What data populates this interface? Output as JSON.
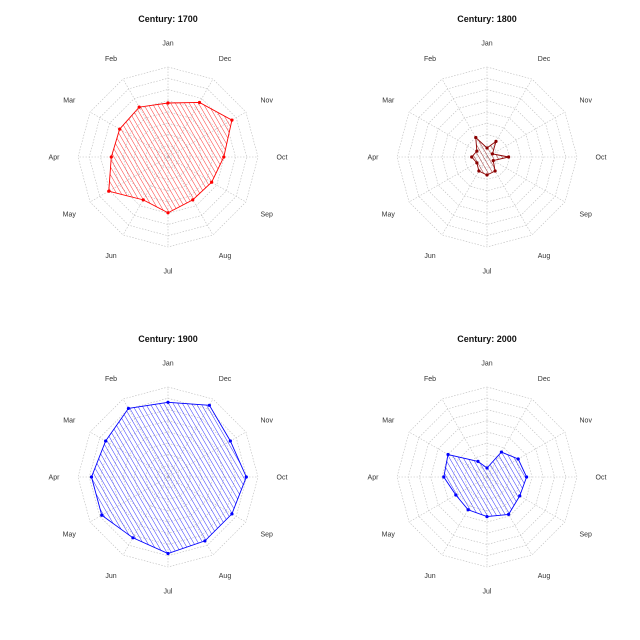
{
  "chart_data": [
    {
      "type": "radar",
      "title": "Century: 1700",
      "axes": [
        "Jan",
        "Dec",
        "Nov",
        "Oct",
        "Sep",
        "Aug",
        "Jul",
        "Jun",
        "May",
        "Apr",
        "Mar",
        "Feb"
      ],
      "rmax": 1.0,
      "rings": 8,
      "grid": true,
      "fill_pattern": "hatched",
      "series": [
        {
          "color": "#ff0000",
          "values": [
            0.6,
            0.7,
            0.82,
            0.62,
            0.56,
            0.55,
            0.62,
            0.55,
            0.76,
            0.63,
            0.62,
            0.64
          ]
        }
      ]
    },
    {
      "type": "radar",
      "title": "Century: 1800",
      "axes": [
        "Jan",
        "Dec",
        "Nov",
        "Oct",
        "Sep",
        "Aug",
        "Jul",
        "Jun",
        "May",
        "Apr",
        "Mar",
        "Feb"
      ],
      "rmax": 1.0,
      "rings": 8,
      "grid": true,
      "fill_pattern": "hatched",
      "series": [
        {
          "color": "#8b0000",
          "values": [
            0.1,
            0.2,
            0.07,
            0.24,
            0.08,
            0.18,
            0.2,
            0.18,
            0.13,
            0.17,
            0.13,
            0.25
          ]
        }
      ]
    },
    {
      "type": "radar",
      "title": "Century: 1900",
      "axes": [
        "Jan",
        "Dec",
        "Nov",
        "Oct",
        "Sep",
        "Aug",
        "Jul",
        "Jun",
        "May",
        "Apr",
        "Mar",
        "Feb"
      ],
      "rmax": 1.0,
      "rings": 8,
      "grid": true,
      "fill_pattern": "hatched",
      "series": [
        {
          "color": "#0000ff",
          "values": [
            0.83,
            0.92,
            0.8,
            0.87,
            0.82,
            0.82,
            0.85,
            0.78,
            0.85,
            0.85,
            0.8,
            0.88
          ]
        }
      ]
    },
    {
      "type": "radar",
      "title": "Century: 2000",
      "axes": [
        "Jan",
        "Dec",
        "Nov",
        "Oct",
        "Sep",
        "Aug",
        "Jul",
        "Jun",
        "May",
        "Apr",
        "Mar",
        "Feb"
      ],
      "rmax": 1.0,
      "rings": 8,
      "grid": true,
      "fill_pattern": "hatched",
      "series": [
        {
          "color": "#0000ff",
          "values": [
            0.1,
            0.32,
            0.4,
            0.44,
            0.42,
            0.48,
            0.44,
            0.42,
            0.4,
            0.48,
            0.5,
            0.2
          ]
        }
      ]
    }
  ]
}
